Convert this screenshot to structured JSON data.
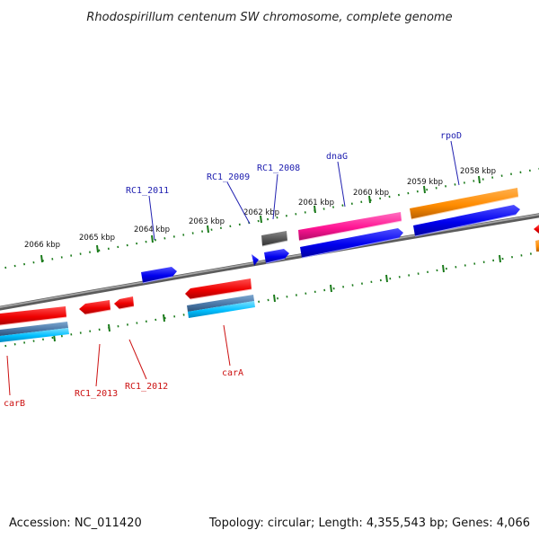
{
  "title": "Rhodospirillum centenum SW chromosome, complete genome",
  "footer": {
    "accession": "Accession: NC_011420",
    "topology": "Topology: circular; Length: 4,355,543 bp; Genes: 4,066"
  },
  "colors": {
    "forward_label": "#2020b0",
    "reverse_label": "#cc1010",
    "backbone": "#808080",
    "tick": "#1a7a1a"
  },
  "ticks": [
    {
      "label": "2066 kbp"
    },
    {
      "label": "2065 kbp"
    },
    {
      "label": "2064 kbp"
    },
    {
      "label": "2063 kbp"
    },
    {
      "label": "2062 kbp"
    },
    {
      "label": "2061 kbp"
    },
    {
      "label": "2060 kbp"
    },
    {
      "label": "2059 kbp"
    },
    {
      "label": "2058 kbp"
    }
  ],
  "gene_labels": {
    "forward": [
      {
        "name": "RC1_2011"
      },
      {
        "name": "RC1_2009"
      },
      {
        "name": "RC1_2008"
      },
      {
        "name": "dnaG"
      },
      {
        "name": "rpoD"
      }
    ],
    "reverse": [
      {
        "name": "carB"
      },
      {
        "name": "RC1_2013"
      },
      {
        "name": "RC1_2012"
      },
      {
        "name": "carA"
      }
    ]
  }
}
